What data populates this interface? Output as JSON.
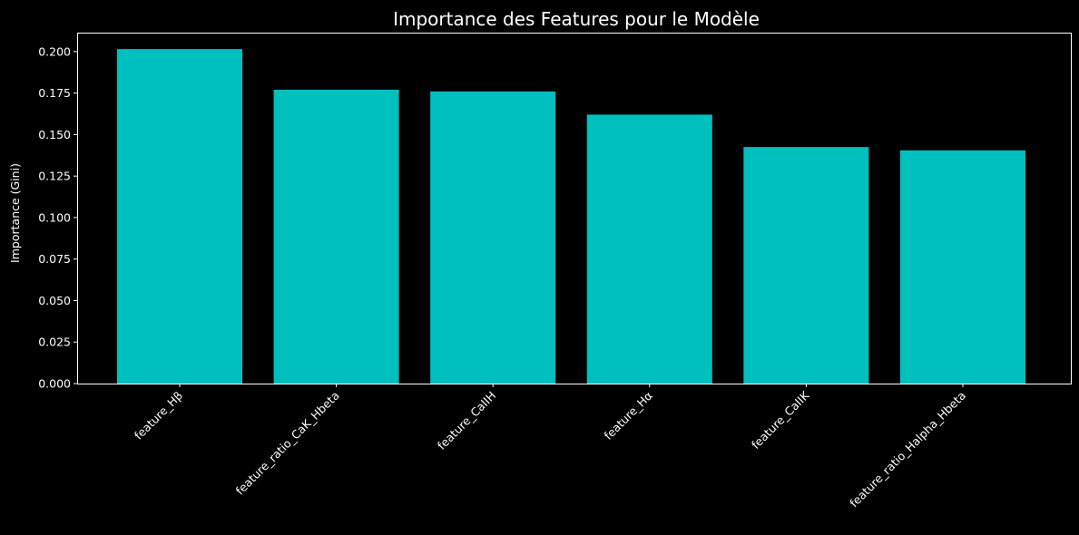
{
  "chart_data": {
    "type": "bar",
    "title": "Importance des Features pour le Modèle",
    "xlabel": "",
    "ylabel": "Importance (Gini)",
    "categories": [
      "feature_Hβ",
      "feature_ratio_CaK_Hbeta",
      "feature_CaIIH",
      "feature_Hα",
      "feature_CaIIK",
      "feature_ratio_Halpha_Hbeta"
    ],
    "values": [
      0.2015,
      0.177,
      0.176,
      0.162,
      0.1425,
      0.1405
    ],
    "ylim": [
      0,
      0.2114
    ],
    "yticks": [
      0.0,
      0.025,
      0.05,
      0.075,
      0.1,
      0.125,
      0.15,
      0.175,
      0.2
    ],
    "ytick_labels": [
      "0.000",
      "0.025",
      "0.050",
      "0.075",
      "0.100",
      "0.125",
      "0.150",
      "0.175",
      "0.200"
    ],
    "xtick_rotation": 45,
    "grid": false,
    "colors": {
      "background": "#000000",
      "bar": "#00bfbf",
      "axes": "#ffffff",
      "text": "#ffffff"
    }
  }
}
